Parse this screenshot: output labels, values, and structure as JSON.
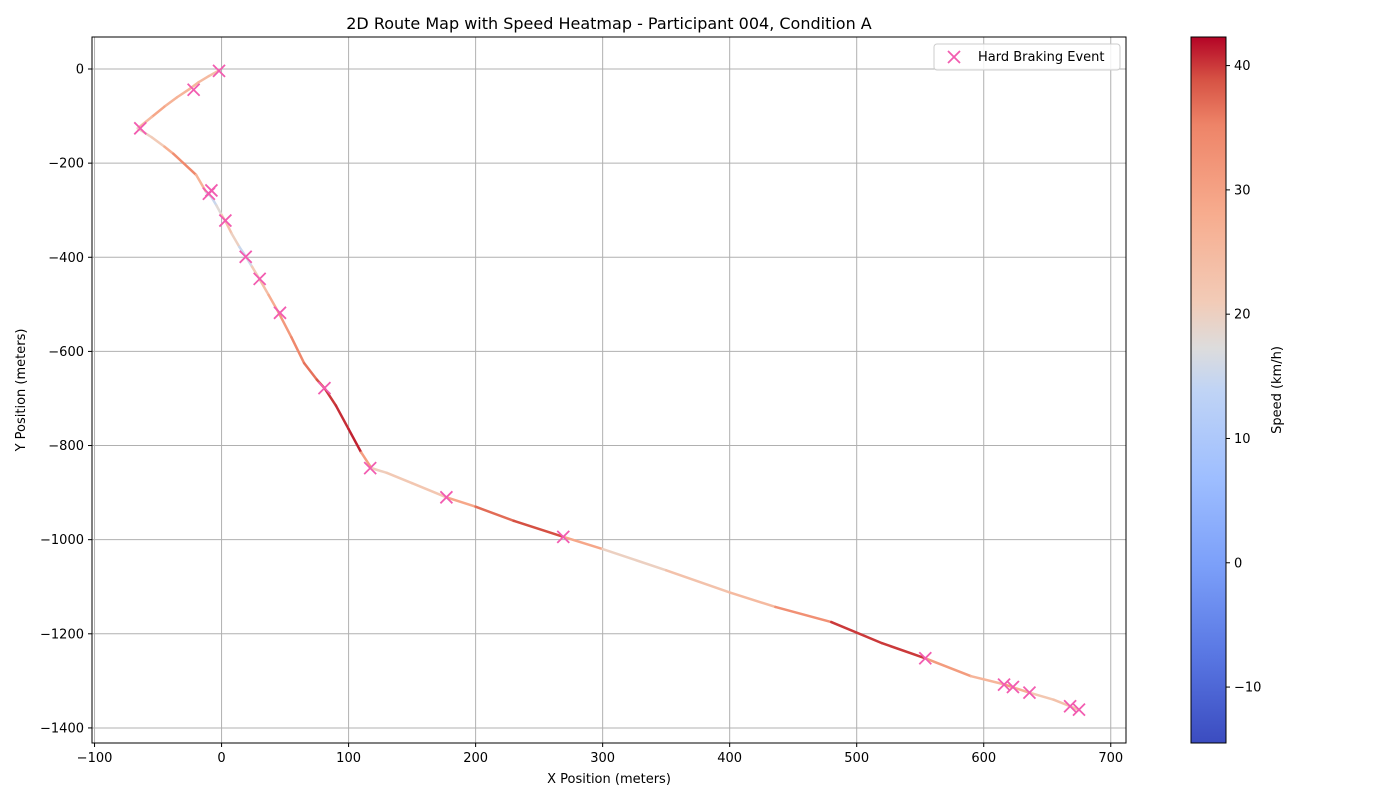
{
  "chart_data": {
    "type": "line",
    "title": "2D Route Map with Speed Heatmap - Participant 004, Condition A",
    "xlabel": "X Position (meters)",
    "ylabel": "Y Position (meters)",
    "xlim": [
      -102,
      712
    ],
    "ylim": [
      -1432,
      68
    ],
    "xticks": [
      -100,
      0,
      100,
      200,
      300,
      400,
      500,
      600,
      700
    ],
    "yticks": [
      0,
      -200,
      -400,
      -600,
      -800,
      -1000,
      -1200,
      -1400
    ],
    "grid": true,
    "legend_placement": "top-right",
    "colormap": "coolwarm",
    "colorbar": {
      "label": "Speed (km/h)",
      "min": -14.5,
      "max": 42.3,
      "ticks": [
        -10,
        0,
        10,
        20,
        30,
        40
      ]
    },
    "route": {
      "x": [
        -2,
        -10,
        -18,
        -25,
        -35,
        -45,
        -55,
        -66,
        -55,
        -45,
        -38,
        -30,
        -20,
        -12,
        -8,
        -4,
        0,
        3,
        8,
        14,
        19,
        24,
        30,
        37,
        45,
        55,
        65,
        75,
        81,
        90,
        100,
        110,
        118,
        130,
        150,
        177,
        200,
        230,
        269,
        300,
        350,
        400,
        436,
        480,
        520,
        554,
        590,
        617,
        622,
        636,
        655,
        669,
        675
      ],
      "y": [
        -3,
        -15,
        -28,
        -42,
        -60,
        -80,
        -102,
        -126,
        -145,
        -165,
        -180,
        -200,
        -225,
        -262,
        -272,
        -290,
        -310,
        -323,
        -350,
        -378,
        -398,
        -420,
        -447,
        -480,
        -518,
        -570,
        -625,
        -660,
        -678,
        -715,
        -765,
        -815,
        -848,
        -858,
        -880,
        -910,
        -930,
        -960,
        -994,
        -1020,
        -1065,
        -1112,
        -1143,
        -1175,
        -1220,
        -1252,
        -1290,
        -1308,
        -1313,
        -1325,
        -1340,
        -1355,
        -1362
      ],
      "speed": [
        22,
        26,
        24,
        27,
        25,
        28,
        30,
        20,
        20,
        22,
        33,
        34,
        35,
        18,
        14,
        16,
        20,
        24,
        22,
        18,
        12,
        20,
        22,
        26,
        30,
        33,
        36,
        37,
        40,
        40,
        41,
        41,
        20,
        21,
        22,
        22,
        36,
        38,
        40,
        18,
        22,
        24,
        26,
        40,
        40,
        40,
        22,
        30,
        32,
        22,
        22,
        24,
        22
      ]
    },
    "series": [
      {
        "name": "Hard Braking Event",
        "marker": "x",
        "color": "#f25cb0",
        "x": [
          -2,
          -22,
          -64,
          -10,
          -8,
          3,
          19,
          30,
          46,
          81,
          117,
          177,
          269,
          554,
          616,
          623,
          636,
          668,
          675
        ],
        "y": [
          -4,
          -44,
          -126,
          -265,
          -258,
          -322,
          -399,
          -446,
          -518,
          -678,
          -848,
          -910,
          -994,
          -1252,
          -1308,
          -1313,
          -1325,
          -1354,
          -1361
        ]
      }
    ]
  }
}
